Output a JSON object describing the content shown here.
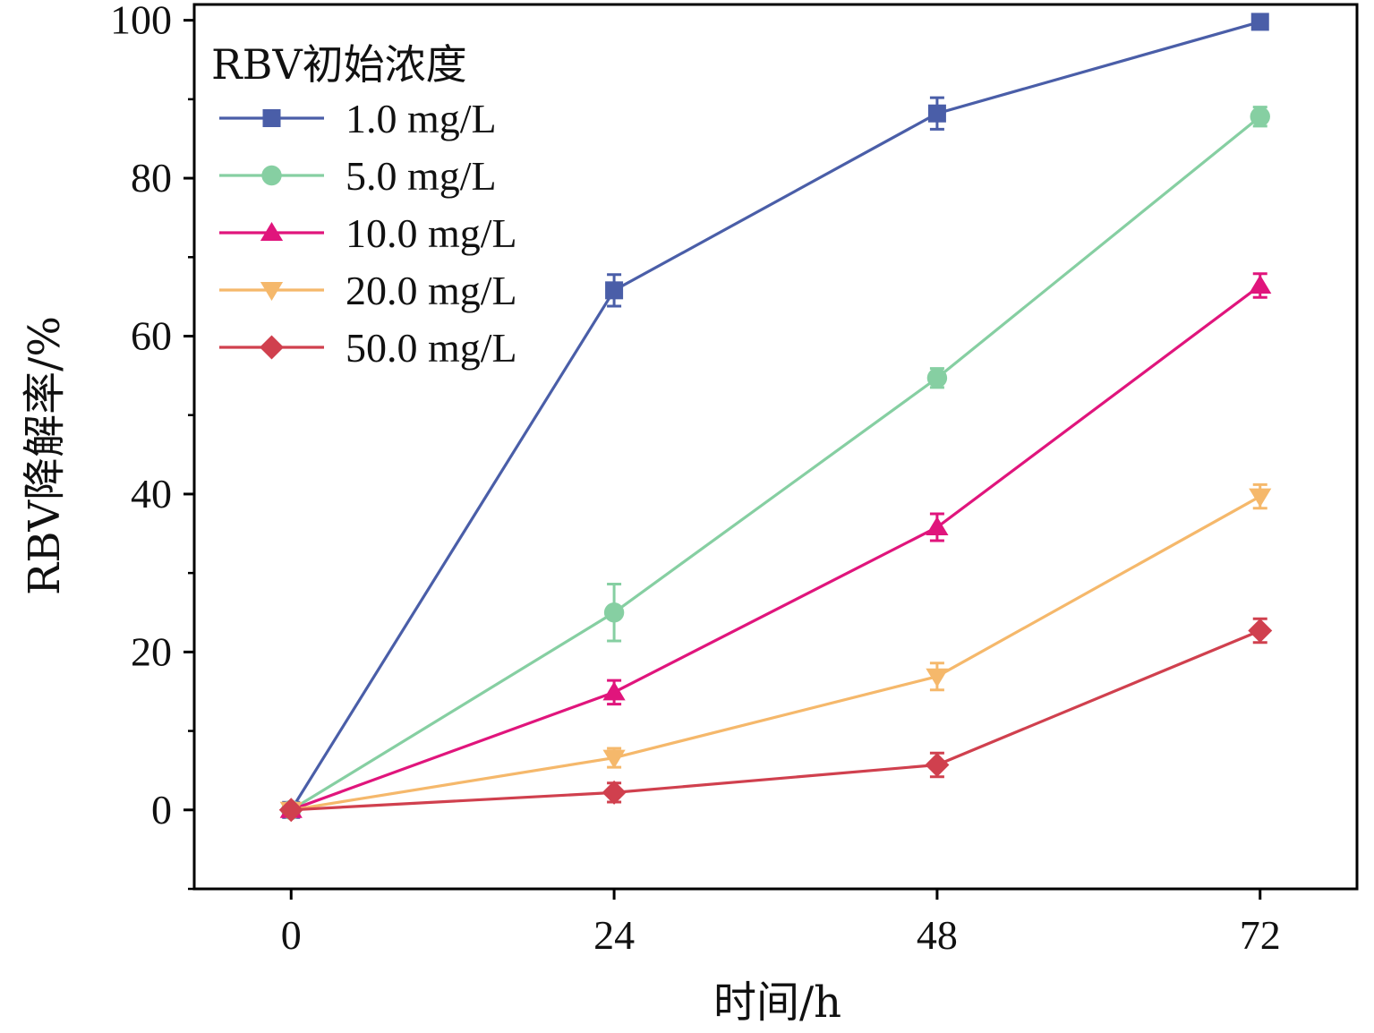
{
  "chart_data": {
    "type": "line",
    "xlabel": "时间/h",
    "ylabel": "RBV降解率/%",
    "x": [
      0,
      24,
      48,
      72
    ],
    "xlim": [
      -7.2,
      79.2
    ],
    "ylim": [
      -10,
      102
    ],
    "xticks": [
      "0",
      "24",
      "48",
      "72"
    ],
    "yticks": [
      "0",
      "20",
      "40",
      "60",
      "80",
      "100"
    ],
    "legend_title": "RBV初始浓度",
    "legend_position": "top-left",
    "grid": false,
    "series": [
      {
        "name": "1.0 mg/L",
        "color": "#4a5ea8",
        "marker": "square",
        "values": [
          0,
          65.8,
          88.2,
          99.8
        ],
        "errors": [
          0,
          2.0,
          2.0,
          0.8
        ]
      },
      {
        "name": "5.0 mg/L",
        "color": "#86cfa2",
        "marker": "circle",
        "values": [
          0,
          25.0,
          54.7,
          87.8
        ],
        "errors": [
          0,
          3.6,
          1.2,
          1.2
        ]
      },
      {
        "name": "10.0 mg/L",
        "color": "#e0157c",
        "marker": "triangle-up",
        "values": [
          0,
          14.9,
          35.8,
          66.4
        ],
        "errors": [
          0,
          1.5,
          1.7,
          1.5
        ]
      },
      {
        "name": "20.0 mg/L",
        "color": "#f5b86b",
        "marker": "triangle-down",
        "values": [
          0,
          6.6,
          16.9,
          39.7
        ],
        "errors": [
          0,
          1.2,
          1.7,
          1.5
        ]
      },
      {
        "name": "50.0 mg/L",
        "color": "#d0404e",
        "marker": "diamond",
        "values": [
          0,
          2.2,
          5.7,
          22.7
        ],
        "errors": [
          0,
          1.2,
          1.5,
          1.5
        ]
      }
    ]
  }
}
